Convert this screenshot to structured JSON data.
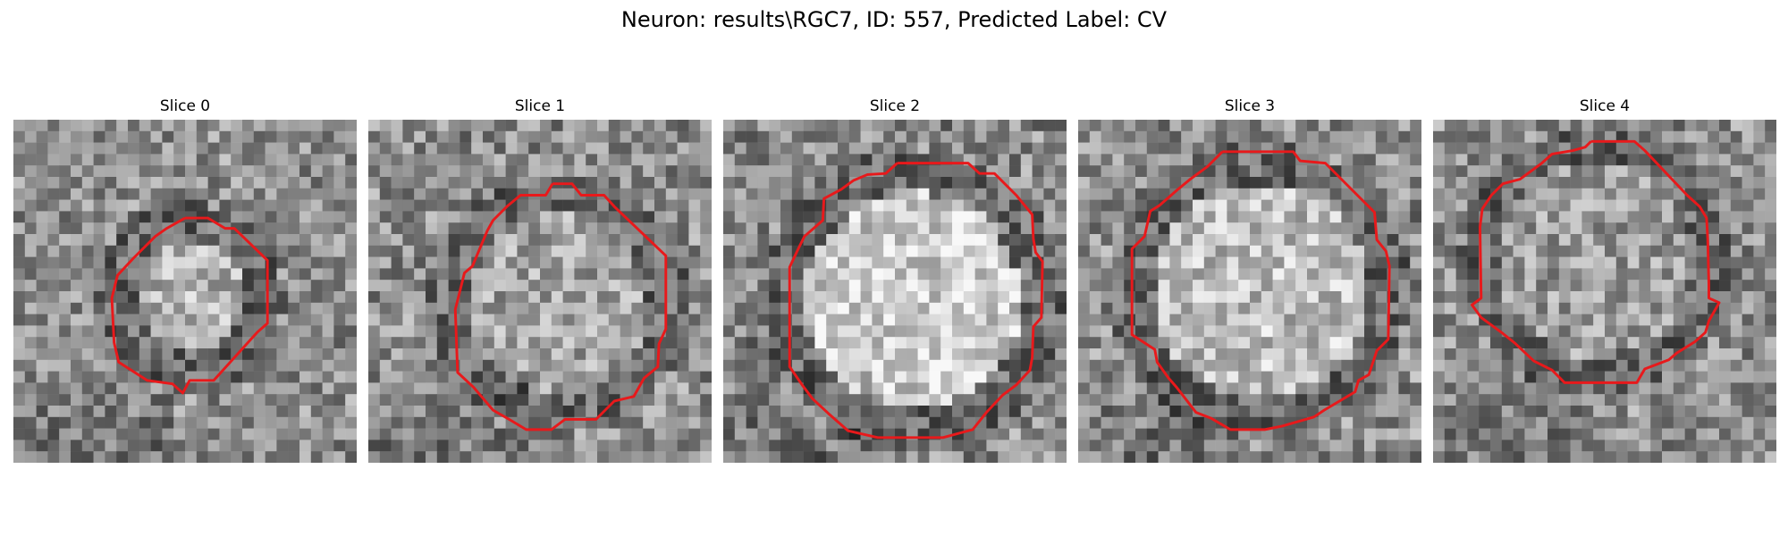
{
  "figure": {
    "title": "Neuron: results\\RGC7, ID: 557, Predicted Label: CV"
  },
  "colors": {
    "contour": "#e8191b",
    "background": "#ffffff"
  },
  "panels": [
    {
      "title": "Slice 0"
    },
    {
      "title": "Slice 1"
    },
    {
      "title": "Slice 2"
    },
    {
      "title": "Slice 3"
    },
    {
      "title": "Slice 4"
    }
  ]
}
